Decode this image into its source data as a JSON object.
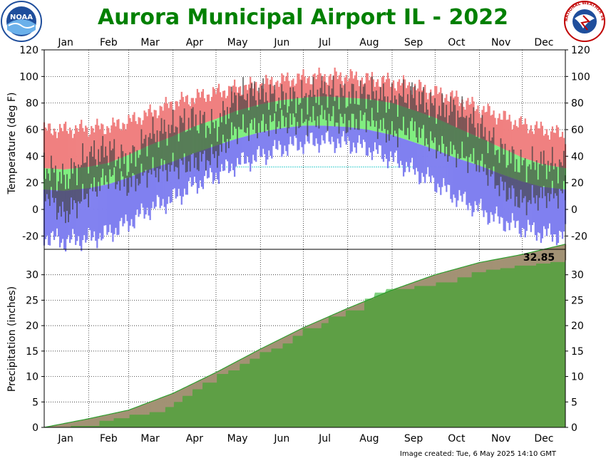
{
  "title": "Aurora Municipal Airport IL - 2022",
  "footer": "Image created: Tue, 6 May 2025 14:10 GMT",
  "logos": {
    "left": {
      "name": "noaa-logo",
      "text": "NOAA"
    },
    "right": {
      "name": "nws-logo",
      "text": "NATIONAL WEATHER SERVICE"
    }
  },
  "colors": {
    "record_high_band": "#f08080",
    "normal_band": "#80ee80",
    "record_low_band": "#8080f0",
    "actual_bar": "#404040",
    "precip_observed": "#80d080",
    "precip_normal": "#5b9a40",
    "title": "#008000"
  },
  "chart_data": [
    {
      "type": "area",
      "panel": "temperature",
      "xlabel": "",
      "ylabel": "Temperature (deg F)",
      "ylim": [
        -30,
        120
      ],
      "yticks": [
        -20,
        0,
        20,
        40,
        60,
        80,
        100,
        120
      ],
      "months": [
        "Jan",
        "Feb",
        "Mar",
        "Apr",
        "May",
        "Jun",
        "Jul",
        "Aug",
        "Sep",
        "Oct",
        "Nov",
        "Dec"
      ],
      "x": [
        1,
        15,
        32,
        46,
        60,
        74,
        91,
        105,
        121,
        135,
        152,
        166,
        182,
        196,
        213,
        227,
        244,
        258,
        274,
        288,
        305,
        319,
        335,
        349,
        365
      ],
      "series": [
        {
          "role": "record_high",
          "values": [
            60,
            60,
            61,
            62,
            66,
            72,
            80,
            84,
            88,
            91,
            94,
            97,
            99,
            100,
            100,
            98,
            96,
            93,
            88,
            84,
            76,
            70,
            64,
            60,
            56
          ]
        },
        {
          "role": "normal_high",
          "values": [
            31,
            30,
            32,
            35,
            41,
            48,
            55,
            62,
            68,
            74,
            79,
            82,
            84,
            85,
            84,
            83,
            80,
            75,
            69,
            62,
            54,
            47,
            39,
            34,
            31
          ]
        },
        {
          "role": "normal_low",
          "values": [
            15,
            14,
            16,
            19,
            24,
            30,
            36,
            42,
            48,
            53,
            58,
            61,
            63,
            63,
            62,
            60,
            56,
            51,
            45,
            39,
            33,
            27,
            21,
            17,
            15
          ]
        },
        {
          "role": "record_low",
          "values": [
            -20,
            -24,
            -22,
            -18,
            -10,
            0,
            8,
            18,
            26,
            34,
            40,
            46,
            50,
            52,
            50,
            46,
            38,
            30,
            20,
            10,
            0,
            -8,
            -14,
            -18,
            -20
          ]
        },
        {
          "role": "actual_high",
          "values": [
            33,
            22,
            40,
            45,
            35,
            55,
            62,
            68,
            62,
            85,
            88,
            83,
            84,
            90,
            85,
            88,
            82,
            87,
            76,
            75,
            62,
            45,
            33,
            35,
            32
          ]
        },
        {
          "role": "actual_low",
          "values": [
            15,
            -5,
            12,
            25,
            18,
            28,
            32,
            35,
            40,
            60,
            62,
            66,
            65,
            70,
            64,
            68,
            56,
            62,
            48,
            42,
            35,
            18,
            5,
            10,
            12
          ]
        }
      ]
    },
    {
      "type": "area",
      "panel": "precipitation",
      "xlabel": "",
      "ylabel": "Precipitation (inches)",
      "ylim": [
        0,
        35
      ],
      "yticks": [
        0,
        5,
        10,
        15,
        20,
        25,
        30
      ],
      "months": [
        "Jan",
        "Feb",
        "Mar",
        "Apr",
        "May",
        "Jun",
        "Jul",
        "Aug",
        "Sep",
        "Oct",
        "Nov",
        "Dec"
      ],
      "annotation": "32.85",
      "series": [
        {
          "role": "observed_cumulative",
          "x": [
            1,
            20,
            40,
            50,
            61,
            75,
            86,
            92,
            98,
            105,
            112,
            122,
            130,
            138,
            145,
            152,
            160,
            168,
            175,
            182,
            195,
            200,
            212,
            225,
            232,
            240,
            260,
            275,
            290,
            300,
            310,
            320,
            330,
            345,
            355,
            365
          ],
          "values": [
            0,
            0.3,
            1.3,
            1.8,
            2.5,
            3.0,
            4.0,
            5.0,
            6.2,
            7.5,
            8.8,
            10.5,
            11.2,
            12.5,
            13.5,
            14.8,
            15.5,
            16.5,
            18.0,
            19.5,
            20.5,
            21.8,
            23.0,
            25.3,
            26.5,
            27.2,
            27.8,
            28.5,
            29.5,
            30.5,
            31.0,
            31.3,
            31.8,
            32.2,
            32.5,
            32.85
          ]
        },
        {
          "role": "normal_cumulative",
          "x": [
            1,
            32,
            60,
            91,
            121,
            152,
            182,
            213,
            244,
            274,
            305,
            335,
            365
          ],
          "values": [
            0,
            1.7,
            3.4,
            6.7,
            10.8,
            15.4,
            19.6,
            23.4,
            27.0,
            30.0,
            32.4,
            34.0,
            36.0
          ]
        }
      ]
    }
  ]
}
